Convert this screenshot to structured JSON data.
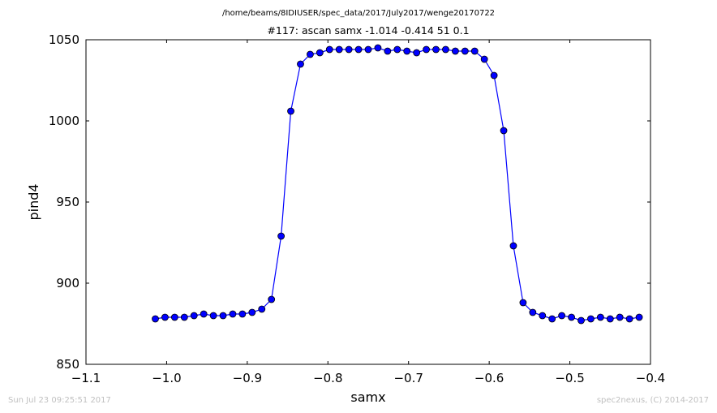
{
  "chart_data": {
    "type": "line",
    "suptitle": "/home/beams/8IDIUSER/spec_data/2017/July2017/wenge20170722",
    "title": "#117: ascan  samx -1.014 -0.414  51 0.1",
    "xlabel": "samx",
    "ylabel": "pind4",
    "xlim": [
      -1.1,
      -0.4
    ],
    "ylim": [
      850,
      1050
    ],
    "x_ticks": [
      -1.1,
      -1.0,
      -0.9,
      -0.8,
      -0.7,
      -0.6,
      -0.5,
      -0.4
    ],
    "y_ticks": [
      850,
      900,
      950,
      1000,
      1050
    ],
    "x_tick_labels": [
      "−1.1",
      "−1.0",
      "−0.9",
      "−0.8",
      "−0.7",
      "−0.6",
      "−0.5",
      "−0.4"
    ],
    "y_tick_labels": [
      "850",
      "900",
      "950",
      "1000",
      "1050"
    ],
    "grid": false,
    "series": [
      {
        "color": "#0000ff",
        "marker": "circle",
        "x": [
          -1.014,
          -1.002,
          -0.99,
          -0.978,
          -0.966,
          -0.954,
          -0.942,
          -0.93,
          -0.918,
          -0.906,
          -0.894,
          -0.882,
          -0.87,
          -0.858,
          -0.846,
          -0.834,
          -0.822,
          -0.81,
          -0.798,
          -0.786,
          -0.774,
          -0.762,
          -0.75,
          -0.738,
          -0.726,
          -0.714,
          -0.702,
          -0.69,
          -0.678,
          -0.666,
          -0.654,
          -0.642,
          -0.63,
          -0.618,
          -0.606,
          -0.594,
          -0.582,
          -0.57,
          -0.558,
          -0.546,
          -0.534,
          -0.522,
          -0.51,
          -0.498,
          -0.486,
          -0.474,
          -0.462,
          -0.45,
          -0.438,
          -0.426,
          -0.414
        ],
        "y": [
          878,
          879,
          879,
          879,
          880,
          881,
          880,
          880,
          881,
          881,
          882,
          884,
          890,
          929,
          1006,
          1035,
          1041,
          1042,
          1044,
          1044,
          1044,
          1044,
          1044,
          1045,
          1043,
          1044,
          1043,
          1042,
          1044,
          1044,
          1044,
          1043,
          1043,
          1043,
          1038,
          1028,
          994,
          923,
          888,
          882,
          880,
          878,
          880,
          879,
          877,
          878,
          879,
          878,
          879,
          878,
          879
        ]
      }
    ]
  },
  "footer": {
    "left": "Sun Jul 23 09:25:51 2017",
    "right": "spec2nexus, (C) 2014-2017"
  }
}
